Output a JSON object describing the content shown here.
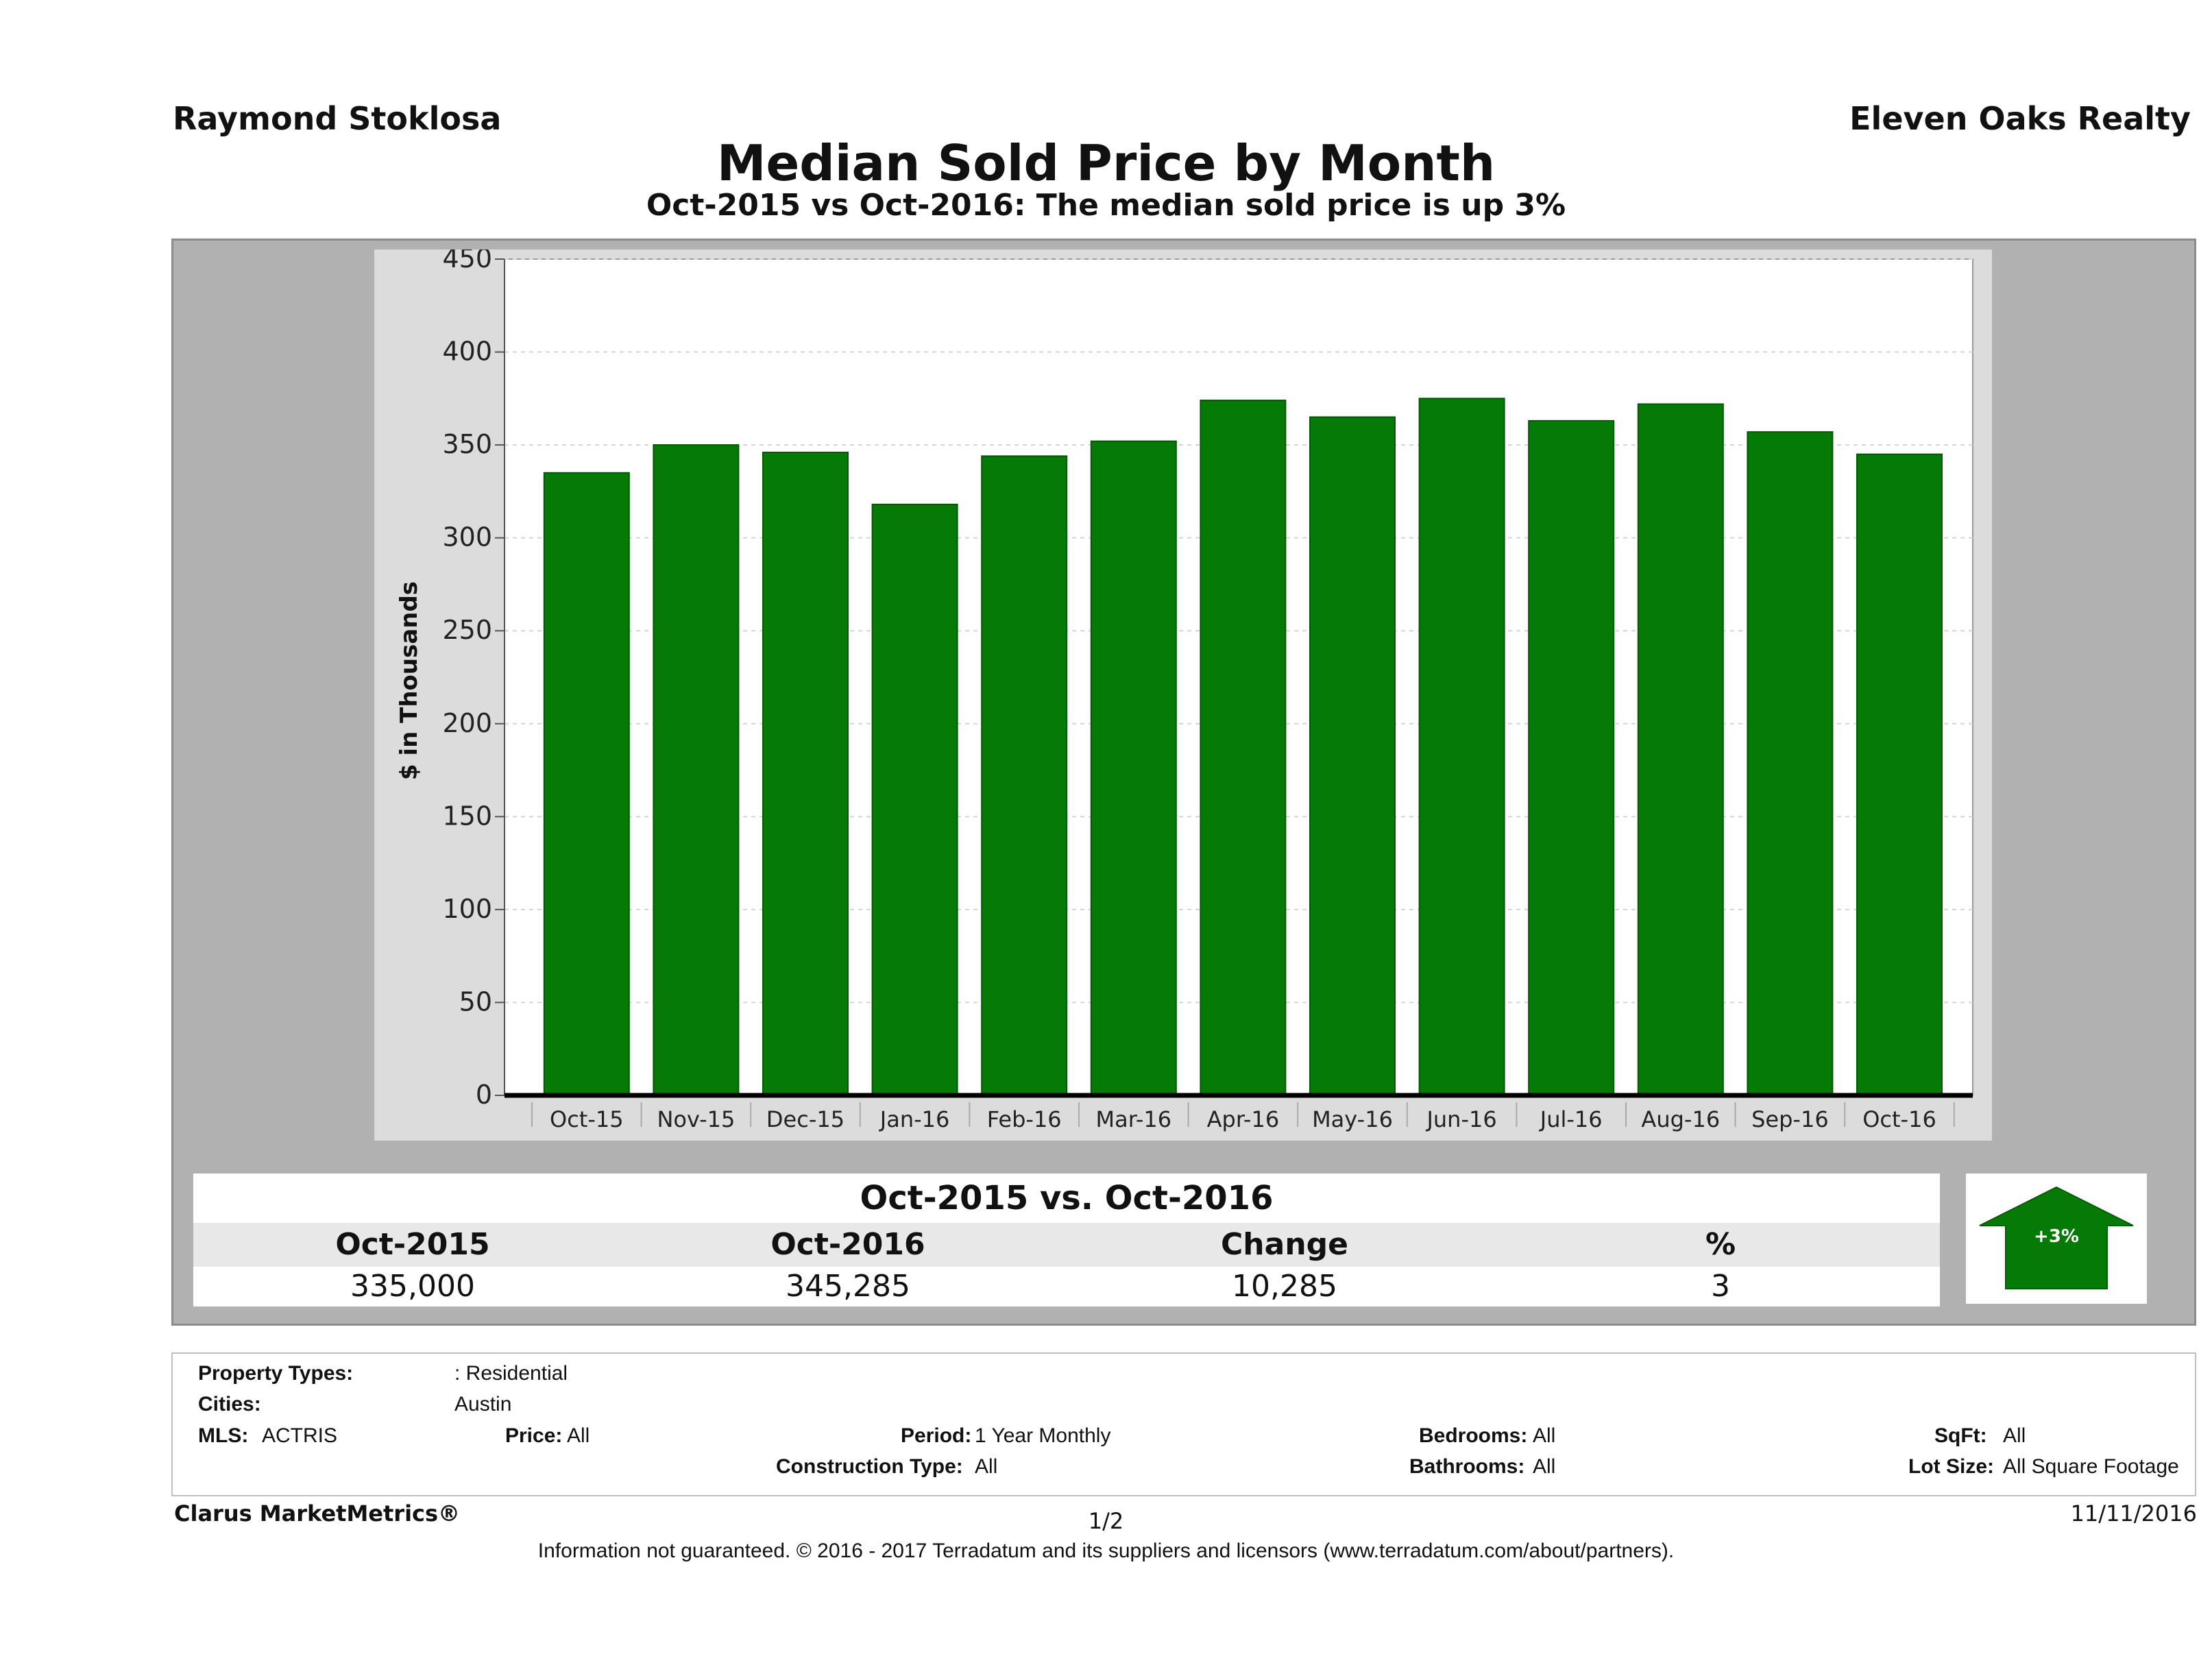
{
  "header": {
    "agent_name": "Raymond Stoklosa",
    "brokerage": "Eleven Oaks Realty"
  },
  "chart_data": {
    "type": "bar",
    "title": "Median Sold Price by Month",
    "subtitle": "Oct-2015 vs Oct-2016: The median sold price is up 3%",
    "ylabel": "$ in Thousands",
    "xlabel": "",
    "ylim": [
      0,
      450
    ],
    "yticks": [
      0,
      50,
      100,
      150,
      200,
      250,
      300,
      350,
      400,
      450
    ],
    "grid": true,
    "legend": "none",
    "bar_color": "#067a06",
    "categories": [
      "Oct-15",
      "Nov-15",
      "Dec-15",
      "Jan-16",
      "Feb-16",
      "Mar-16",
      "Apr-16",
      "May-16",
      "Jun-16",
      "Jul-16",
      "Aug-16",
      "Sep-16",
      "Oct-16"
    ],
    "values": [
      335,
      350,
      346,
      318,
      344,
      352,
      374,
      365,
      375,
      363,
      372,
      357,
      345
    ]
  },
  "comparison": {
    "title": "Oct-2015 vs. Oct-2016",
    "headers": [
      "Oct-2015",
      "Oct-2016",
      "Change",
      "%"
    ],
    "values": [
      "335,000",
      "345,285",
      "10,285",
      "3"
    ],
    "badge": "+3%",
    "badge_color": "#067a06"
  },
  "filters": {
    "property_types_label": "Property Types:",
    "property_types_value": ": Residential",
    "cities_label": "Cities:",
    "cities_value": "Austin",
    "mls_label": "MLS:",
    "mls_value": "ACTRIS",
    "price_label": "Price:",
    "price_value": "All",
    "period_label": "Period:",
    "period_value": "1 Year Monthly",
    "construction_label": "Construction Type:",
    "construction_value": "All",
    "bedrooms_label": "Bedrooms:",
    "bedrooms_value": "All",
    "bathrooms_label": "Bathrooms:",
    "bathrooms_value": "All",
    "sqft_label": "SqFt:",
    "sqft_value": "All",
    "lotsize_label": "Lot Size:",
    "lotsize_value": "All Square Footage"
  },
  "footer": {
    "brand": "Clarus MarketMetrics®",
    "page": "1/2",
    "date": "11/11/2016",
    "disclaimer": "Information not guaranteed. © 2016 - 2017 Terradatum and its suppliers and licensors (www.terradatum.com/about/partners)."
  }
}
